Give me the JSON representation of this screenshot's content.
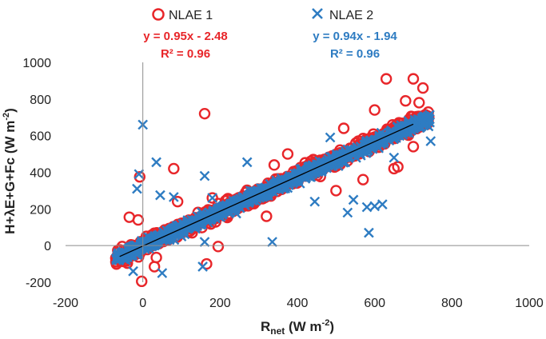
{
  "chart_data": {
    "type": "scatter",
    "xlabel": "Rnet (W m-2)",
    "ylabel": "H+λE+G+Fc  (W m-2)",
    "xlim": [
      -200,
      1000
    ],
    "ylim": [
      -200,
      1000
    ],
    "x_ticks": [
      "-200",
      "0",
      "200",
      "400",
      "600",
      "800",
      "1000"
    ],
    "y_ticks": [
      "-200",
      "0",
      "200",
      "400",
      "600",
      "800",
      "1000"
    ],
    "grid": false,
    "legend_position": "top",
    "x_axis_title": {
      "main": "R",
      "sub": "net",
      "rest": " (W m",
      "sup": "-2",
      "close": ")"
    },
    "y_axis_title": {
      "main": "H+λE+G+Fc  (W m",
      "sup": "-2",
      "close": ")"
    },
    "series": [
      {
        "name": "NLAE 1",
        "marker": "circle",
        "color": "#e8262a",
        "equation": "y = 0.95x - 2.48",
        "r2": "R² = 0.96",
        "slope": 0.95,
        "intercept": -2.48,
        "x_range": [
          -70,
          740
        ],
        "outliers": [
          [
            -3,
            -195
          ],
          [
            -8,
            375
          ],
          [
            -12,
            140
          ],
          [
            -35,
            155
          ],
          [
            30,
            -115
          ],
          [
            35,
            -65
          ],
          [
            80,
            420
          ],
          [
            90,
            240
          ],
          [
            160,
            720
          ],
          [
            165,
            -100
          ],
          [
            180,
            260
          ],
          [
            195,
            -5
          ],
          [
            320,
            160
          ],
          [
            340,
            440
          ],
          [
            375,
            500
          ],
          [
            500,
            300
          ],
          [
            520,
            640
          ],
          [
            570,
            360
          ],
          [
            600,
            740
          ],
          [
            630,
            910
          ],
          [
            650,
            420
          ],
          [
            660,
            430
          ],
          [
            680,
            790
          ],
          [
            700,
            910
          ],
          [
            700,
            540
          ],
          [
            715,
            780
          ],
          [
            725,
            860
          ],
          [
            740,
            700
          ],
          [
            690,
            640
          ]
        ]
      },
      {
        "name": "NLAE 2",
        "marker": "x",
        "color": "#2e7cc2",
        "equation": "y = 0.94x - 1.94",
        "r2": "R² = 0.96",
        "slope": 0.94,
        "intercept": -1.94,
        "x_range": [
          -70,
          745
        ],
        "outliers": [
          [
            0,
            660
          ],
          [
            -10,
            390
          ],
          [
            -15,
            310
          ],
          [
            -25,
            -140
          ],
          [
            -45,
            -40
          ],
          [
            35,
            455
          ],
          [
            45,
            275
          ],
          [
            50,
            -150
          ],
          [
            80,
            265
          ],
          [
            160,
            20
          ],
          [
            160,
            380
          ],
          [
            155,
            -115
          ],
          [
            270,
            455
          ],
          [
            335,
            20
          ],
          [
            445,
            240
          ],
          [
            485,
            590
          ],
          [
            530,
            180
          ],
          [
            545,
            250
          ],
          [
            580,
            210
          ],
          [
            585,
            70
          ],
          [
            600,
            215
          ],
          [
            620,
            225
          ],
          [
            630,
            600
          ],
          [
            650,
            480
          ],
          [
            745,
            570
          ],
          [
            690,
            650
          ],
          [
            180,
            260
          ],
          [
            100,
            50
          ]
        ]
      }
    ]
  }
}
